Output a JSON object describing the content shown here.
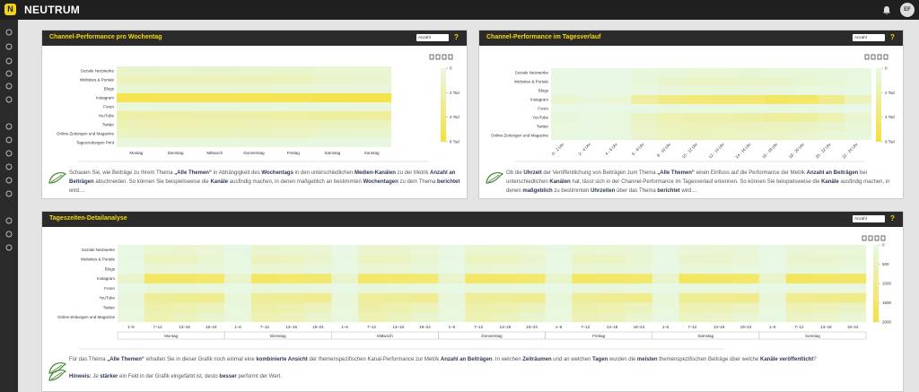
{
  "header": {
    "logo": "N",
    "brand": "NEUTRUM",
    "avatar": "EF"
  },
  "panels": [
    {
      "title": "Channel-Performance pro Wochentag",
      "select": "Anzahl",
      "help": "?",
      "heatmap": {
        "rows": [
          "Soziale Netzwerke",
          "Websites & Portale",
          "Blogs",
          "Instagram",
          "Foren",
          "YouTube",
          "Twitter",
          "Online-Zeitungen und Magazine",
          "Tageszeitungen Print"
        ],
        "columns": [
          "Montag",
          "Dienstag",
          "Mittwoch",
          "Donnerstag",
          "Freitag",
          "Samstag",
          "Sonntag"
        ],
        "values": [
          [
            900,
            850,
            900,
            880,
            860,
            700,
            650
          ],
          [
            1400,
            1500,
            1450,
            1500,
            1350,
            900,
            850
          ],
          [
            700,
            750,
            720,
            760,
            680,
            500,
            450
          ],
          [
            5200,
            5100,
            5000,
            5100,
            5200,
            5300,
            5400
          ],
          [
            500,
            550,
            520,
            500,
            480,
            400,
            420
          ],
          [
            2200,
            2100,
            2000,
            2100,
            2300,
            2400,
            2500
          ],
          [
            1700,
            1800,
            1750,
            1700,
            1600,
            1400,
            1300
          ],
          [
            1300,
            1400,
            1350,
            1300,
            1200,
            900,
            800
          ],
          [
            300,
            320,
            310,
            300,
            290,
            200,
            150
          ]
        ],
        "colors": [
          "#e8f8e6",
          "#f7e03a"
        ],
        "colorbar_lim": [
          0,
          6000
        ],
        "colorbar_ticks": [
          0,
          {
            "value": 2000,
            "label": "2 Tsd"
          },
          {
            "value": 4000,
            "label": "4 Tsd"
          },
          {
            "value": 6000,
            "label": "6 Tsd"
          }
        ]
      },
      "description": [
        {
          "text": "Schauen Sie, wie Beiträge zu Ihrem Thema ",
          "bold": false
        },
        {
          "text": "„Alle Themen“",
          "bold": true
        },
        {
          "text": " in Abhängigkeit des ",
          "bold": false
        },
        {
          "text": "Wochentags",
          "bold": true
        },
        {
          "text": " in den unterschiedlichen ",
          "bold": false
        },
        {
          "text": "Medien-Kanälen",
          "bold": true
        },
        {
          "text": " zu der Metrik ",
          "bold": false
        },
        {
          "text": "Anzahl an Beiträgen",
          "bold": true
        },
        {
          "text": " abschneiden. So können Sie beispielsweise die ",
          "bold": false
        },
        {
          "text": "Kanäle",
          "bold": true
        },
        {
          "text": " ausfindig machen, in denen maßgeblich an bestimmten ",
          "bold": false
        },
        {
          "text": "Wochentagen",
          "bold": true
        },
        {
          "text": " zu dem Thema ",
          "bold": false
        },
        {
          "text": "berichtet",
          "bold": true
        },
        {
          "text": " wird....",
          "bold": false
        }
      ]
    },
    {
      "title": "Channel-Performance im Tagesverlauf",
      "select": "Anzahl",
      "help": "?",
      "heatmap": {
        "rows": [
          "Soziale Netzwerke",
          "Websites & Portale",
          "Blogs",
          "Instagram",
          "Foren",
          "YouTube",
          "Twitter",
          "Online-Zeitungen und Magazine"
        ],
        "columns": [
          "0 - 2 Uhr",
          "2 - 4 Uhr",
          "4 - 6 Uhr",
          "6 - 8 Uhr",
          "8 - 10 Uhr",
          "10 - 12 Uhr",
          "12 - 14 Uhr",
          "14 - 16 Uhr",
          "16 - 18 Uhr",
          "18 - 20 Uhr",
          "20 - 22 Uhr",
          "22 - 24 Uhr"
        ],
        "values": [
          [
            100,
            50,
            80,
            300,
            500,
            600,
            600,
            550,
            500,
            450,
            350,
            200
          ],
          [
            150,
            80,
            120,
            500,
            900,
            1100,
            1100,
            1000,
            900,
            700,
            500,
            300
          ],
          [
            60,
            30,
            50,
            200,
            400,
            500,
            500,
            450,
            400,
            350,
            250,
            120
          ],
          [
            800,
            400,
            600,
            2500,
            3500,
            3800,
            3900,
            4000,
            4500,
            4300,
            3200,
            1500
          ],
          [
            40,
            20,
            30,
            150,
            300,
            350,
            350,
            300,
            300,
            250,
            200,
            80
          ],
          [
            400,
            200,
            300,
            1200,
            1800,
            2000,
            2100,
            2200,
            2500,
            2400,
            1800,
            800
          ],
          [
            300,
            150,
            250,
            1000,
            1500,
            1600,
            1500,
            1400,
            1300,
            1200,
            900,
            500
          ],
          [
            200,
            100,
            200,
            900,
            1300,
            1400,
            1300,
            1100,
            1000,
            800,
            600,
            300
          ]
        ],
        "colors": [
          "#e8f8e6",
          "#f7e03a"
        ],
        "colorbar_lim": [
          0,
          6000
        ],
        "colorbar_ticks": [
          0,
          {
            "value": 2000,
            "label": "2 Tsd"
          },
          {
            "value": 4000,
            "label": "4 Tsd"
          },
          {
            "value": 6000,
            "label": "6 Tsd"
          }
        ]
      },
      "description": [
        {
          "text": "Ob die ",
          "bold": false
        },
        {
          "text": "Uhrzeit",
          "bold": true
        },
        {
          "text": " der Veröffentlichung von Beiträgen zum Thema ",
          "bold": false
        },
        {
          "text": "„Alle Themen“",
          "bold": true
        },
        {
          "text": " einen Einfluss auf die Performance der Metrik ",
          "bold": false
        },
        {
          "text": "Anzahl an Beiträgen",
          "bold": true
        },
        {
          "text": " bei unterschiedlichen ",
          "bold": false
        },
        {
          "text": "Kanälen",
          "bold": true
        },
        {
          "text": " hat, lässt sich in der Channel-Performance im Tagesverlauf erkennen. So können Sie beispielsweise die ",
          "bold": false
        },
        {
          "text": "Kanäle",
          "bold": true
        },
        {
          "text": " ausfindig machen, in denen ",
          "bold": false
        },
        {
          "text": "maßgeblich",
          "bold": true
        },
        {
          "text": " zu bestimmten ",
          "bold": false
        },
        {
          "text": "Uhrzeiten",
          "bold": true
        },
        {
          "text": " über das Thema ",
          "bold": false
        },
        {
          "text": "berichtet",
          "bold": true
        },
        {
          "text": " wird....",
          "bold": false
        }
      ]
    },
    {
      "title": "Tageszeiten-Detailanalyse",
      "select": "Anzahl",
      "help": "?",
      "heatmap": {
        "rows": [
          "Soziale Netzwerke",
          "Websites & Portale",
          "Blogs",
          "Instagram",
          "Foren",
          "YouTube",
          "Twitter",
          "Online-Zeitungen und Magazine"
        ],
        "slots": [
          "1–6",
          "7–12",
          "13–18",
          "19–24"
        ],
        "days": [
          "Montag",
          "Dienstag",
          "Mittwoch",
          "Donnerstag",
          "Freitag",
          "Samstag",
          "Sonntag"
        ],
        "values": [
          [
            40,
            250,
            260,
            200,
            45,
            260,
            250,
            210,
            40,
            255,
            260,
            200,
            40,
            250,
            250,
            205,
            45,
            240,
            230,
            190,
            30,
            200,
            210,
            180,
            30,
            190,
            200,
            170
          ],
          [
            60,
            450,
            420,
            250,
            65,
            460,
            430,
            260,
            60,
            450,
            420,
            250,
            60,
            455,
            425,
            255,
            55,
            420,
            400,
            240,
            40,
            300,
            300,
            200,
            40,
            290,
            280,
            190
          ],
          [
            30,
            220,
            200,
            150,
            30,
            230,
            210,
            150,
            30,
            225,
            205,
            150,
            30,
            220,
            200,
            145,
            28,
            210,
            190,
            140,
            20,
            160,
            150,
            110,
            20,
            150,
            140,
            100
          ],
          [
            300,
            1500,
            1450,
            1400,
            310,
            1480,
            1420,
            1380,
            300,
            1450,
            1400,
            1350,
            305,
            1470,
            1430,
            1400,
            310,
            1500,
            1460,
            1420,
            320,
            1520,
            1480,
            1450,
            330,
            1550,
            1500,
            1480
          ],
          [
            20,
            150,
            140,
            100,
            22,
            160,
            150,
            100,
            20,
            155,
            145,
            100,
            20,
            150,
            140,
            95,
            18,
            140,
            130,
            90,
            15,
            110,
            100,
            80,
            15,
            115,
            105,
            85
          ],
          [
            150,
            900,
            950,
            1000,
            150,
            880,
            930,
            980,
            145,
            870,
            920,
            970,
            150,
            890,
            940,
            990,
            160,
            920,
            970,
            1020,
            170,
            950,
            1000,
            1050,
            180,
            980,
            1030,
            1080
          ],
          [
            120,
            700,
            650,
            500,
            125,
            720,
            660,
            510,
            120,
            710,
            655,
            500,
            120,
            700,
            650,
            495,
            115,
            680,
            620,
            480,
            100,
            600,
            560,
            440,
            95,
            580,
            540,
            420
          ],
          [
            100,
            600,
            500,
            300,
            105,
            620,
            510,
            310,
            100,
            610,
            505,
            300,
            100,
            600,
            500,
            300,
            95,
            570,
            470,
            280,
            70,
            420,
            360,
            220,
            65,
            400,
            340,
            210
          ]
        ],
        "colors": [
          "#e8f8e6",
          "#f7e03a"
        ],
        "colorbar_lim": [
          0,
          2000
        ],
        "colorbar_ticks": [
          0,
          500,
          1000,
          1500,
          2000
        ]
      },
      "description": [
        {
          "text": "Für das Thema ",
          "bold": false
        },
        {
          "text": "„Alle Themen“",
          "bold": true
        },
        {
          "text": " erhalten Sie in dieser Grafik noch einmal eine ",
          "bold": false
        },
        {
          "text": "kombinierte Ansicht",
          "bold": true
        },
        {
          "text": " der themenspezifischen Kanal-Performance zur Metrik ",
          "bold": false
        },
        {
          "text": "Anzahl an Beiträgen",
          "bold": true
        },
        {
          "text": ". In welchen ",
          "bold": false
        },
        {
          "text": "Zeiträumen",
          "bold": true
        },
        {
          "text": " und an welchen ",
          "bold": false
        },
        {
          "text": "Tagen",
          "bold": true
        },
        {
          "text": " wurden die ",
          "bold": false
        },
        {
          "text": "meisten",
          "bold": true
        },
        {
          "text": " themenspezifischen Beiträge über welche ",
          "bold": false
        },
        {
          "text": "Kanäle veröffentlicht",
          "bold": true
        },
        {
          "text": "?",
          "bold": false
        }
      ],
      "note": [
        {
          "text": "Hinweis:",
          "bold": true
        },
        {
          "text": " Je ",
          "bold": false
        },
        {
          "text": "stärker",
          "bold": true
        },
        {
          "text": " ein Feld in der Grafik eingefärbt ist, desto ",
          "bold": false
        },
        {
          "text": "besser",
          "bold": true
        },
        {
          "text": " performt der Wert.",
          "bold": false
        }
      ]
    }
  ]
}
